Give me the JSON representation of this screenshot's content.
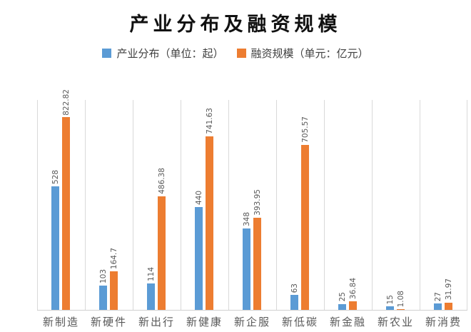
{
  "chart": {
    "title": "产业分布及融资规模"
  },
  "chart_data": {
    "type": "bar",
    "title": "产业分布及融资规模",
    "categories": [
      "新制造",
      "新硬件",
      "新出行",
      "新健康",
      "新企服",
      "新低碳",
      "新金融",
      "新农业",
      "新消费"
    ],
    "series": [
      {
        "name": "产业分布（单位：起）",
        "color": "#5B9BD5",
        "values": [
          528,
          103,
          114,
          440,
          348,
          63,
          25,
          15,
          27
        ],
        "data_labels": [
          "528",
          "103",
          "114",
          "440",
          "348",
          "63",
          "25",
          "15",
          "27"
        ]
      },
      {
        "name": "融资规模（单元：亿元）",
        "color": "#ED7D31",
        "values": [
          822.82,
          164.7,
          486.38,
          741.63,
          393.95,
          705.57,
          36.84,
          1.08,
          31.97
        ],
        "data_labels": [
          "822.82",
          "164.7",
          "486.38",
          "741.63",
          "393.95",
          "705.57",
          "36.84",
          "1.08",
          "31.97"
        ]
      }
    ],
    "ylim": [
      0,
      900
    ],
    "xlabel": "",
    "ylabel": "",
    "grid": "vertical category separators only, no y-axis labels",
    "legend_position": "top",
    "data_label_orientation": "rotated-90-bottom-to-top",
    "label_color": "#595959",
    "gridline_color": "#d9d9d9"
  }
}
